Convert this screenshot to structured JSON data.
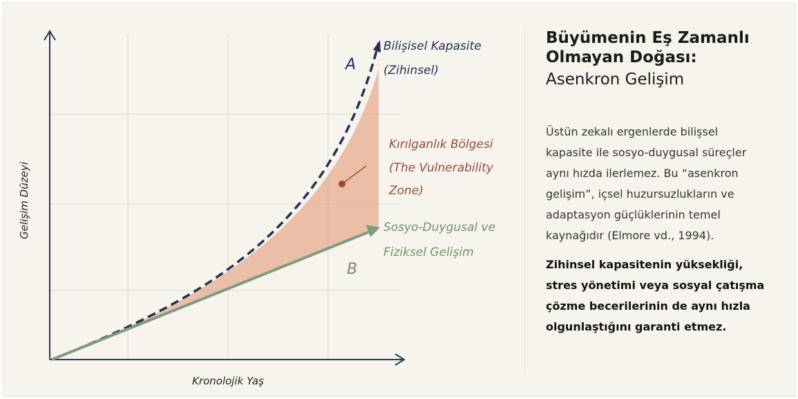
{
  "diagram": {
    "y_axis_label": "Gelişim Düzeyi",
    "x_axis_label": "Kronolojik Yaş",
    "curve_a": {
      "marker": "A",
      "label_lines": [
        "Bilişisel Kapasite",
        "(Zihinsel)"
      ]
    },
    "zone": {
      "label_lines": [
        "Kırılganlık Bölgesi",
        "(The Vulnerability",
        "Zone)"
      ]
    },
    "curve_b": {
      "marker": "B",
      "label_lines": [
        "Sosyo-Duygusal ve",
        "Fiziksel Gelişim"
      ]
    }
  },
  "panel": {
    "title_lines": [
      "Büyümenin Eş Zamanlı",
      "Olmayan Doğası:"
    ],
    "subtitle": "Asenkron Gelişim",
    "body_lines": [
      "Üstün zekalı ergenlerde bilişsel",
      "kapasite ile sosyo-duygusal süreçler",
      "aynı hızda ilerlemez. Bu “asenkron",
      "gelişim”, içsel huzursuzlukların ve",
      "adaptasyon güçlüklerinin temel",
      "kaynağıdır (Elmore vd., 1994)."
    ],
    "emphasis_lines": [
      "Zihinsel kapasitenin yüksekliği,",
      "stres yönetimi veya sosyal çatışma",
      "çözme becerilerinin de aynı hızla",
      "olgunlaştığını garanti etmez."
    ]
  }
}
